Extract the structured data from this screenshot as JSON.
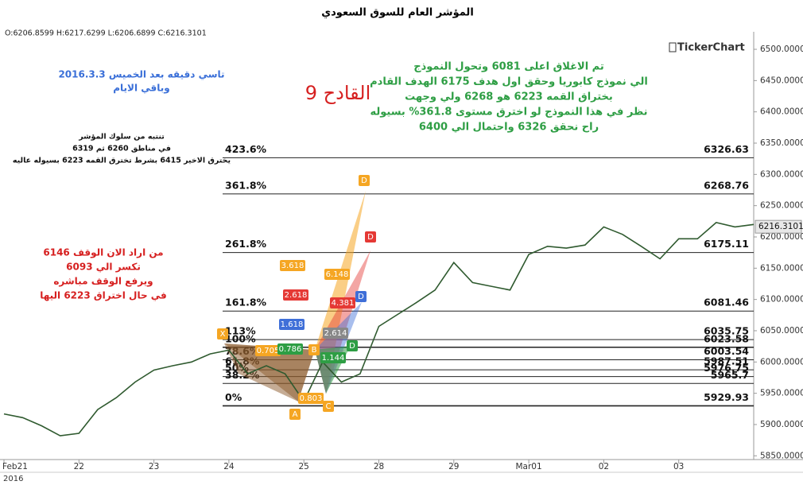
{
  "chart_data": {
    "type": "line",
    "title": "المؤشر العام للسوق السعودي",
    "ohlc": "O:6206.8599 H:6217.6299 L:6206.6899 C:6216.3101",
    "brand": "TickerChart",
    "year": "2016",
    "xlim": [
      0,
      10
    ],
    "xticks": [
      {
        "value": 0,
        "label": "Feb21"
      },
      {
        "value": 1,
        "label": "22"
      },
      {
        "value": 2,
        "label": "23"
      },
      {
        "value": 3,
        "label": "24"
      },
      {
        "value": 4,
        "label": "25"
      },
      {
        "value": 5,
        "label": "28"
      },
      {
        "value": 6,
        "label": "29"
      },
      {
        "value": 7,
        "label": "Mar01"
      },
      {
        "value": 8,
        "label": "02"
      },
      {
        "value": 9,
        "label": "03"
      }
    ],
    "ylim": [
      5844,
      6528
    ],
    "yticks": [
      {
        "value": 5850,
        "label": "5850.0000"
      },
      {
        "value": 5900,
        "label": "5900.0000"
      },
      {
        "value": 5950,
        "label": "5950.0000"
      },
      {
        "value": 6000,
        "label": "6000.0000"
      },
      {
        "value": 6050,
        "label": "6050.0000"
      },
      {
        "value": 6100,
        "label": "6100.0000"
      },
      {
        "value": 6150,
        "label": "6150.0000"
      },
      {
        "value": 6200,
        "label": "6200.0000"
      },
      {
        "value": 6250,
        "label": "6250.0000"
      },
      {
        "value": 6300,
        "label": "6300.0000"
      },
      {
        "value": 6350,
        "label": "6350.0000"
      },
      {
        "value": 6400,
        "label": "6400.0000"
      },
      {
        "value": 6450,
        "label": "6450.0000"
      },
      {
        "value": 6500,
        "label": "6500.0000"
      }
    ],
    "series": [
      {
        "color": "#2f5a2f",
        "x": [
          0,
          0.25,
          0.5,
          0.75,
          1,
          1.25,
          1.5,
          1.75,
          2,
          2.25,
          2.5,
          2.75,
          3,
          3.25,
          3.5,
          3.75,
          4,
          4.25,
          4.5,
          4.75,
          5,
          5.25,
          5.5,
          5.75,
          6,
          6.25,
          6.5,
          6.75,
          7,
          7.25,
          7.5,
          7.75,
          8,
          8.25,
          8.5,
          8.75,
          9,
          9.25,
          9.5,
          9.75,
          10
        ],
        "values": [
          5917,
          5911,
          5898,
          5882,
          5886,
          5924,
          5943,
          5968,
          5987,
          5994,
          6000,
          6013,
          6019,
          5981,
          5994,
          5981,
          5937,
          6000,
          5968,
          5981,
          6057,
          6076,
          6095,
          6115,
          6159,
          6127,
          6121,
          6115,
          6172,
          6185,
          6182,
          6187,
          6216,
          6204,
          6185,
          6165,
          6197,
          6197,
          6223,
          6216,
          6220
        ]
      }
    ],
    "last_price": 6216.3101,
    "last_price_label": "6216.3101",
    "fib_levels": [
      {
        "ratio": "423.6%",
        "price": 6326.63
      },
      {
        "ratio": "361.8%",
        "price": 6268.76
      },
      {
        "ratio": "261.8%",
        "price": 6175.11
      },
      {
        "ratio": "161.8%",
        "price": 6081.46
      },
      {
        "ratio": "113%",
        "price": 6035.75
      },
      {
        "ratio": "100%",
        "price": 6023.58
      },
      {
        "ratio": "78.6%",
        "price": 6003.54
      },
      {
        "ratio": "61.8%",
        "price": 5987.51
      },
      {
        "ratio": "50%",
        "price": 5976.75
      },
      {
        "ratio": "38.2%",
        "price": 5965.7
      },
      {
        "ratio": "0%",
        "price": 5929.93
      }
    ],
    "pattern_points": [
      "X",
      "A",
      "B",
      "C",
      "D",
      "D",
      "D",
      "D"
    ],
    "pattern_ratios": [
      "0.705",
      "0.786",
      "1.618",
      "2.618",
      "3.618",
      "6.148",
      "4.381",
      "2.614",
      "1.144",
      "0.803"
    ],
    "notes_blue": [
      "تاسي دقيقه بعد الخميس  2016.3.3",
      "وباقي الايام"
    ],
    "note_big": "القادح 9",
    "notes_black": [
      "تنتبه من سلوك المؤشر",
      "في مناطق 6260 ثم 6319",
      "يخترق الاخير 6415 بشرط تخترق القمه 6223 بسيوله عاليه"
    ],
    "notes_green": [
      "تم الاغلاق اعلى 6081 وتحول النموذج",
      "الي نموذج كابوريا وحقق اول هدف 6175 الهدف القادم",
      "بختراق القمه 6223 هو 6268 ولي وجهت",
      "نظر في هذا النموذج لو اخترق مستوى 361.8% بسيوله",
      "راح نحقق 6326 واحتمال الي 6400"
    ],
    "notes_red": [
      "من اراد الان الوقف 6146",
      "تكسر الي 6093",
      "ويرفع الوقف مباشره",
      "في حال اختراق 6223 اليها"
    ]
  }
}
